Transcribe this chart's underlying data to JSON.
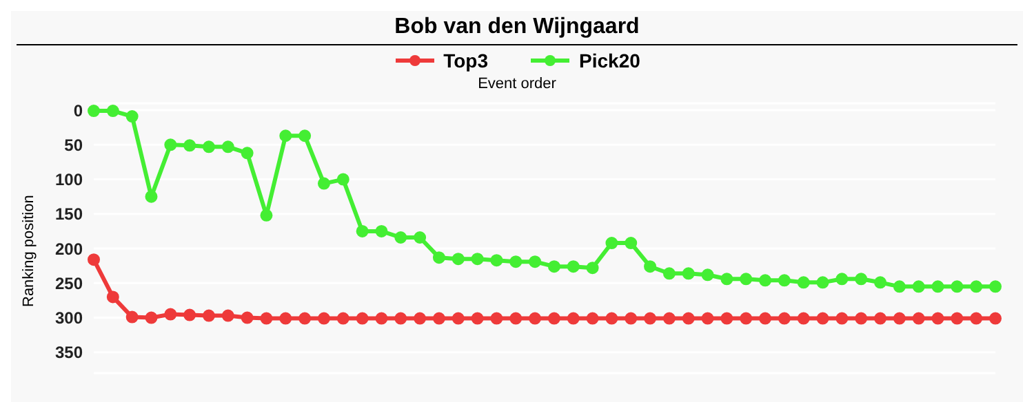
{
  "chart_data": {
    "type": "line",
    "title": "Bob van den Wijngaard",
    "xlabel": "Event order",
    "ylabel": "Ranking position",
    "categories": [
      null,
      null,
      null,
      null,
      null,
      null,
      null,
      null,
      null,
      null,
      null,
      null,
      null,
      null,
      null,
      null,
      null,
      null,
      null,
      null,
      null,
      null,
      null,
      null,
      null,
      null,
      null,
      null,
      null,
      null,
      null,
      null,
      null,
      null,
      null,
      null,
      null,
      null,
      null,
      null,
      null,
      null,
      null,
      null,
      null,
      null,
      null,
      null
    ],
    "series": [
      {
        "name": "Top3",
        "color": "#ee3a3a",
        "values": [
          216,
          270,
          299,
          300,
          295,
          296,
          297,
          297,
          300,
          301,
          301,
          301,
          301,
          301,
          301,
          301,
          301,
          301,
          301,
          301,
          301,
          301,
          301,
          301,
          301,
          301,
          301,
          301,
          301,
          301,
          301,
          301,
          301,
          301,
          301,
          301,
          301,
          301,
          301,
          301,
          301,
          301,
          301,
          301,
          301,
          301,
          301,
          301
        ]
      },
      {
        "name": "Pick20",
        "color": "#44ee33",
        "values": [
          1,
          1,
          9,
          125,
          50,
          51,
          53,
          53,
          62,
          152,
          37,
          37,
          106,
          100,
          175,
          175,
          184,
          184,
          213,
          215,
          215,
          217,
          219,
          219,
          226,
          226,
          228,
          192,
          192,
          226,
          236,
          236,
          238,
          244,
          244,
          246,
          246,
          249,
          249,
          244,
          244,
          249,
          255,
          255,
          255,
          255,
          255,
          255
        ]
      }
    ],
    "ylim": [
      380,
      -10
    ],
    "yticks": [
      0,
      50,
      100,
      150,
      200,
      250,
      300,
      350
    ],
    "grid": "y",
    "legend": "top",
    "marker": "circle",
    "line_style": "solid",
    "tick_labels": "y"
  }
}
